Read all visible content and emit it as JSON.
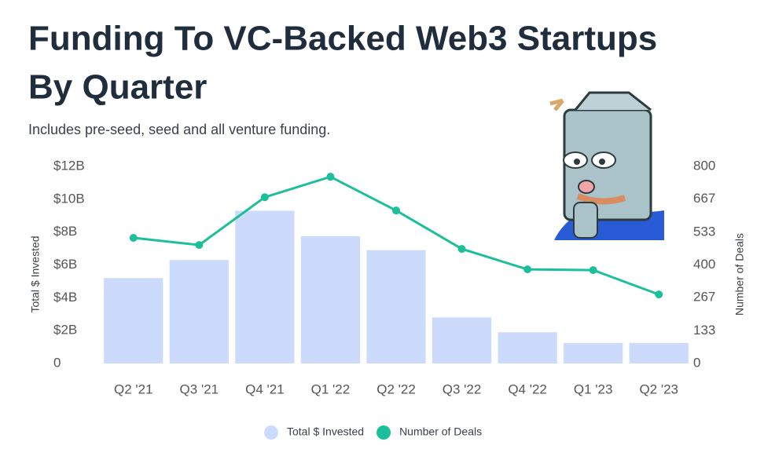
{
  "chart_data": {
    "type": "bar_line",
    "title": [
      "Funding To VC-Backed Web3 Startups",
      "By Quarter"
    ],
    "subtitle": "Includes pre-seed, seed and all venture funding.",
    "categories": [
      "Q2 '21",
      "Q3 '21",
      "Q4 '21",
      "Q1 '22",
      "Q2 '22",
      "Q3 '22",
      "Q4 '22",
      "Q1 '23",
      "Q2 '23"
    ],
    "series": [
      {
        "name": "Total $ Invested",
        "type": "bar",
        "color": "#ccdafc",
        "values": [
          5.2,
          6.3,
          9.3,
          7.75,
          6.9,
          2.8,
          1.9,
          1.25,
          1.25
        ]
      },
      {
        "name": "Number of Deals",
        "type": "line",
        "axis": "y2",
        "color": "#1dbf9a",
        "values": [
          510,
          481,
          675,
          758,
          621,
          465,
          382,
          379,
          280
        ]
      }
    ],
    "ylabel": "Total $ Invested",
    "y2label": "Number of Deals",
    "ylim": [
      0,
      12
    ],
    "yticks": [
      {
        "value": 0,
        "label": "0"
      },
      {
        "value": 2,
        "label": "$2B"
      },
      {
        "value": 4,
        "label": "$4B"
      },
      {
        "value": 6,
        "label": "$6B"
      },
      {
        "value": 8,
        "label": "$8B"
      },
      {
        "value": 10,
        "label": "$10B"
      },
      {
        "value": 12,
        "label": "$12B"
      }
    ],
    "y2lim": [
      0,
      800
    ],
    "y2ticks": [
      0,
      133,
      267,
      400,
      533,
      667,
      800
    ],
    "grid": false,
    "legend": "bottom"
  }
}
